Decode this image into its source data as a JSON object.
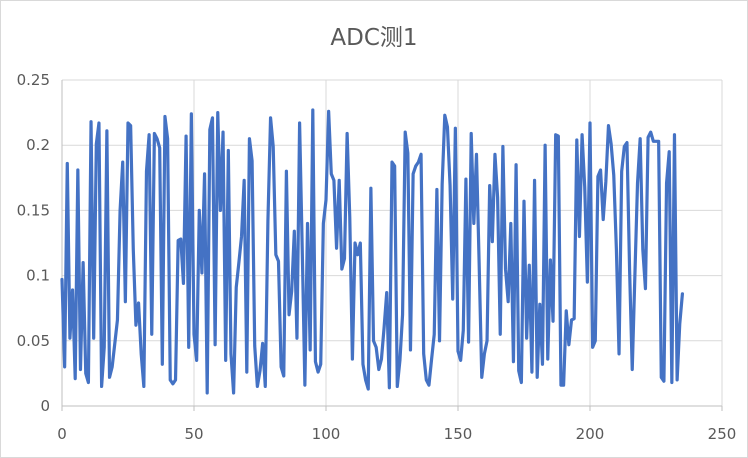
{
  "chart_data": {
    "type": "line",
    "title": "ADC测1",
    "xlabel": "",
    "ylabel": "",
    "xlim": [
      0,
      250
    ],
    "ylim": [
      0,
      0.25
    ],
    "x_ticks": [
      0,
      50,
      100,
      150,
      200,
      250
    ],
    "y_ticks": [
      0,
      0.05,
      0.1,
      0.15,
      0.2,
      0.25
    ],
    "x_tick_labels": [
      "0",
      "50",
      "100",
      "150",
      "200",
      "250"
    ],
    "y_tick_labels": [
      "0",
      "0.05",
      "0.1",
      "0.15",
      "0.2",
      "0.25"
    ],
    "grid": "both",
    "legend": "none",
    "colors": {
      "series": "#4472c4",
      "grid": "#d9d9d9",
      "text": "#595959"
    },
    "series": [
      {
        "values": [
          0.097,
          0.03,
          0.186,
          0.052,
          0.089,
          0.021,
          0.181,
          0.028,
          0.11,
          0.025,
          0.018,
          0.218,
          0.052,
          0.201,
          0.217,
          0.015,
          0.045,
          0.211,
          0.022,
          0.03,
          0.048,
          0.066,
          0.15,
          0.187,
          0.08,
          0.217,
          0.215,
          0.12,
          0.062,
          0.079,
          0.04,
          0.015,
          0.18,
          0.208,
          0.055,
          0.209,
          0.205,
          0.198,
          0.032,
          0.222,
          0.205,
          0.02,
          0.017,
          0.02,
          0.127,
          0.128,
          0.094,
          0.207,
          0.045,
          0.224,
          0.055,
          0.035,
          0.15,
          0.102,
          0.178,
          0.01,
          0.212,
          0.221,
          0.047,
          0.225,
          0.15,
          0.21,
          0.035,
          0.196,
          0.04,
          0.01,
          0.091,
          0.11,
          0.13,
          0.173,
          0.026,
          0.205,
          0.188,
          0.046,
          0.015,
          0.027,
          0.048,
          0.015,
          0.142,
          0.221,
          0.199,
          0.116,
          0.111,
          0.03,
          0.023,
          0.18,
          0.07,
          0.088,
          0.134,
          0.052,
          0.217,
          0.12,
          0.016,
          0.14,
          0.043,
          0.227,
          0.034,
          0.026,
          0.032,
          0.14,
          0.158,
          0.226,
          0.178,
          0.173,
          0.121,
          0.173,
          0.105,
          0.113,
          0.209,
          0.145,
          0.036,
          0.125,
          0.116,
          0.125,
          0.032,
          0.02,
          0.013,
          0.167,
          0.05,
          0.045,
          0.028,
          0.036,
          0.06,
          0.087,
          0.014,
          0.187,
          0.184,
          0.015,
          0.035,
          0.07,
          0.21,
          0.194,
          0.043,
          0.178,
          0.184,
          0.187,
          0.193,
          0.04,
          0.02,
          0.016,
          0.036,
          0.055,
          0.166,
          0.05,
          0.17,
          0.223,
          0.214,
          0.169,
          0.082,
          0.213,
          0.042,
          0.035,
          0.058,
          0.174,
          0.049,
          0.209,
          0.14,
          0.193,
          0.11,
          0.022,
          0.04,
          0.05,
          0.169,
          0.126,
          0.193,
          0.16,
          0.055,
          0.199,
          0.105,
          0.08,
          0.14,
          0.034,
          0.185,
          0.027,
          0.018,
          0.157,
          0.052,
          0.108,
          0.026,
          0.173,
          0.022,
          0.078,
          0.032,
          0.2,
          0.036,
          0.112,
          0.065,
          0.208,
          0.207,
          0.016,
          0.016,
          0.073,
          0.047,
          0.066,
          0.067,
          0.204,
          0.13,
          0.208,
          0.168,
          0.095,
          0.217,
          0.045,
          0.05,
          0.176,
          0.181,
          0.143,
          0.172,
          0.215,
          0.201,
          0.177,
          0.12,
          0.04,
          0.18,
          0.199,
          0.202,
          0.104,
          0.028,
          0.1,
          0.171,
          0.205,
          0.12,
          0.09,
          0.206,
          0.21,
          0.203,
          0.203,
          0.203,
          0.022,
          0.019,
          0.171,
          0.195,
          0.018,
          0.208,
          0.02,
          0.063,
          0.086
        ]
      }
    ]
  }
}
